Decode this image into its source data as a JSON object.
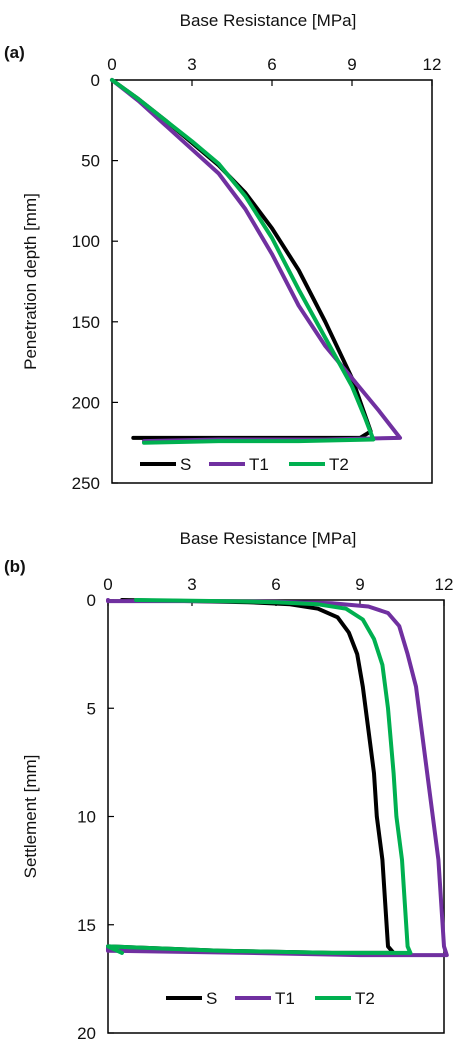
{
  "chart_data": [
    {
      "type": "line",
      "panel_label": "(a)",
      "xlabel": "Base Resistance [MPa]",
      "ylabel": "Penetration depth [mm]",
      "xlim": [
        0,
        12
      ],
      "ylim": [
        0,
        250
      ],
      "x_ticks": [
        "0",
        "3",
        "6",
        "9",
        "12"
      ],
      "y_ticks": [
        "0",
        "50",
        "100",
        "150",
        "200",
        "250"
      ],
      "y_inverted": true,
      "x_axis_position": "top",
      "legend_position": "bottom-center",
      "series": [
        {
          "name": "S",
          "color": "#000000",
          "points": [
            [
              0,
              0
            ],
            [
              1,
              12
            ],
            [
              2,
              25
            ],
            [
              3,
              39
            ],
            [
              4,
              53
            ],
            [
              5,
              70
            ],
            [
              6,
              92
            ],
            [
              7,
              118
            ],
            [
              8,
              150
            ],
            [
              9,
              185
            ],
            [
              9.7,
              218
            ],
            [
              9.3,
              222
            ],
            [
              6,
              222
            ],
            [
              3,
              222
            ],
            [
              0.8,
              222
            ]
          ]
        },
        {
          "name": "T1",
          "color": "#7030a0",
          "points": [
            [
              0,
              0
            ],
            [
              1,
              13
            ],
            [
              2,
              28
            ],
            [
              3,
              43
            ],
            [
              4,
              58
            ],
            [
              5,
              80
            ],
            [
              6,
              108
            ],
            [
              7,
              140
            ],
            [
              8,
              165
            ],
            [
              9,
              185
            ],
            [
              10,
              205
            ],
            [
              10.8,
              222
            ],
            [
              8,
              223
            ],
            [
              4,
              223
            ],
            [
              1.2,
              224
            ]
          ]
        },
        {
          "name": "T2",
          "color": "#00b050",
          "points": [
            [
              0,
              0
            ],
            [
              1,
              12
            ],
            [
              2,
              25
            ],
            [
              3,
              38
            ],
            [
              4,
              52
            ],
            [
              5,
              72
            ],
            [
              6,
              98
            ],
            [
              7,
              130
            ],
            [
              8,
              160
            ],
            [
              9,
              190
            ],
            [
              9.5,
              210
            ],
            [
              9.8,
              223
            ],
            [
              7,
              224
            ],
            [
              4,
              224
            ],
            [
              1.2,
              225
            ]
          ]
        }
      ]
    },
    {
      "type": "line",
      "panel_label": "(b)",
      "xlabel": "Base Resistance [MPa]",
      "ylabel": "Settlement [mm]",
      "xlim": [
        0,
        12
      ],
      "ylim": [
        0,
        20
      ],
      "x_ticks": [
        "0",
        "3",
        "6",
        "9",
        "12"
      ],
      "y_ticks": [
        "0",
        "5",
        "10",
        "15",
        "20"
      ],
      "y_inverted": true,
      "x_axis_position": "top",
      "legend_position": "bottom-center",
      "series": [
        {
          "name": "S",
          "color": "#000000",
          "points": [
            [
              0.5,
              0
            ],
            [
              3,
              0.05
            ],
            [
              5,
              0.1
            ],
            [
              6.5,
              0.2
            ],
            [
              7.5,
              0.4
            ],
            [
              8.2,
              0.8
            ],
            [
              8.6,
              1.5
            ],
            [
              8.9,
              2.5
            ],
            [
              9.1,
              4
            ],
            [
              9.3,
              6
            ],
            [
              9.5,
              8
            ],
            [
              9.6,
              10
            ],
            [
              9.8,
              12
            ],
            [
              9.9,
              14
            ],
            [
              10,
              16
            ],
            [
              10.2,
              16.3
            ],
            [
              8,
              16.3
            ],
            [
              4,
              16.2
            ],
            [
              0,
              16
            ]
          ]
        },
        {
          "name": "T1",
          "color": "#7030a0",
          "points": [
            [
              0,
              0
            ],
            [
              0,
              0.05
            ],
            [
              3,
              0.05
            ],
            [
              6,
              0.08
            ],
            [
              8,
              0.15
            ],
            [
              9.3,
              0.3
            ],
            [
              10,
              0.6
            ],
            [
              10.4,
              1.2
            ],
            [
              10.7,
              2.5
            ],
            [
              11,
              4
            ],
            [
              11.2,
              6
            ],
            [
              11.4,
              8
            ],
            [
              11.6,
              10
            ],
            [
              11.8,
              12
            ],
            [
              11.9,
              14
            ],
            [
              12,
              16
            ],
            [
              12.1,
              16.4
            ],
            [
              9,
              16.4
            ],
            [
              5,
              16.3
            ],
            [
              0,
              16.2
            ],
            [
              0,
              16
            ]
          ]
        },
        {
          "name": "T2",
          "color": "#00b050",
          "points": [
            [
              1,
              0
            ],
            [
              4,
              0.05
            ],
            [
              6,
              0.1
            ],
            [
              7.5,
              0.2
            ],
            [
              8.5,
              0.4
            ],
            [
              9.1,
              0.9
            ],
            [
              9.5,
              1.8
            ],
            [
              9.8,
              3
            ],
            [
              10,
              5
            ],
            [
              10.2,
              8
            ],
            [
              10.3,
              10
            ],
            [
              10.5,
              12
            ],
            [
              10.6,
              14
            ],
            [
              10.7,
              16
            ],
            [
              10.8,
              16.3
            ],
            [
              8,
              16.3
            ],
            [
              4,
              16.2
            ],
            [
              0,
              16
            ],
            [
              0.5,
              16.3
            ]
          ]
        }
      ]
    }
  ]
}
